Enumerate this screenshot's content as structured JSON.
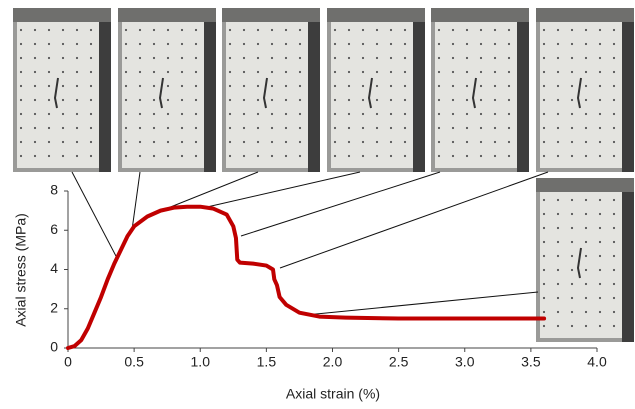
{
  "chart_data": {
    "type": "line",
    "x_label": "Axial strain (%)",
    "y_label": "Axial stress (MPa)",
    "x": [
      0,
      0.05,
      0.1,
      0.15,
      0.2,
      0.25,
      0.3,
      0.35,
      0.4,
      0.45,
      0.5,
      0.6,
      0.7,
      0.8,
      0.9,
      1.0,
      1.1,
      1.2,
      1.25,
      1.27,
      1.28,
      1.3,
      1.4,
      1.5,
      1.55,
      1.56,
      1.58,
      1.6,
      1.65,
      1.75,
      1.9,
      2.1,
      2.5,
      3.0,
      3.6
    ],
    "values": [
      0,
      0.1,
      0.4,
      1.0,
      1.8,
      2.6,
      3.5,
      4.3,
      5.0,
      5.7,
      6.2,
      6.7,
      7.0,
      7.15,
      7.2,
      7.2,
      7.1,
      6.8,
      6.2,
      5.6,
      4.5,
      4.35,
      4.3,
      4.2,
      4.0,
      3.5,
      3.2,
      2.6,
      2.2,
      1.8,
      1.6,
      1.55,
      1.5,
      1.5,
      1.5
    ],
    "color": "#c00000",
    "xlim": [
      0,
      4
    ],
    "xticks": [
      0,
      0.5,
      {
        "value": 1,
        "label": "1.0"
      },
      1.5,
      {
        "value": 2,
        "label": "2.0"
      },
      2.5,
      {
        "value": 3,
        "label": "3.0"
      },
      3.5,
      {
        "value": 4,
        "label": "4.0"
      }
    ],
    "ylim": [
      0,
      8
    ],
    "yticks": [
      0,
      2,
      4,
      6,
      8
    ]
  }
}
